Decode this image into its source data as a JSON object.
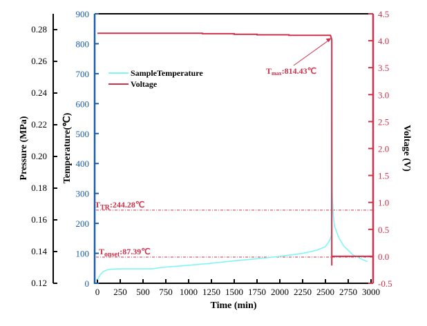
{
  "colors": {
    "temperature_axis": "#1a5ca8",
    "voltage": "#d0304a",
    "temperature": "#7ff5f5",
    "pressure_axis": "#000000"
  },
  "chart_data": {
    "type": "line",
    "xlabel": "Time (min)",
    "xlim": [
      0,
      3000
    ],
    "xticks": [
      "0",
      "250",
      "500",
      "750",
      "1000",
      "1250",
      "1500",
      "1750",
      "2000",
      "2250",
      "2500",
      "2750",
      "3000"
    ],
    "axes": {
      "pressure": {
        "label": "Pressure (MPa)",
        "ylim": [
          0.12,
          0.29
        ],
        "ticks": [
          "0.12",
          "0.14",
          "0.16",
          "0.18",
          "0.20",
          "0.22",
          "0.24",
          "0.26",
          "0.28"
        ]
      },
      "temperature": {
        "label": "Temperature(℃)",
        "ylim": [
          0,
          900
        ],
        "ticks": [
          "0",
          "100",
          "200",
          "300",
          "400",
          "500",
          "600",
          "700",
          "800",
          "900"
        ]
      },
      "voltage": {
        "label": "Voltage (V)",
        "ylim": [
          -0.5,
          4.5
        ],
        "ticks": [
          "-0.5",
          "0.0",
          "0.5",
          "1.0",
          "1.5",
          "2.0",
          "2.5",
          "3.0",
          "3.5",
          "4.0",
          "4.5"
        ]
      }
    },
    "legend": {
      "placement": "top-left",
      "entries": [
        "SampleTemperature",
        "Voltage"
      ]
    },
    "series": [
      {
        "name": "SampleTemperature",
        "axis": "temperature",
        "x": [
          0,
          30,
          60,
          100,
          150,
          250,
          600,
          700,
          1000,
          1250,
          1500,
          1750,
          2000,
          2250,
          2400,
          2500,
          2550,
          2565,
          2570,
          2575,
          2585,
          2600,
          2650,
          2700,
          2800,
          2900,
          2960
        ],
        "y": [
          12,
          28,
          38,
          44,
          47,
          48,
          48,
          53,
          60,
          67,
          75,
          82,
          90,
          100,
          110,
          122,
          145,
          160,
          814,
          300,
          230,
          190,
          150,
          125,
          95,
          80,
          72
        ]
      },
      {
        "name": "Voltage",
        "axis": "voltage",
        "x": [
          0,
          1150,
          1150,
          1500,
          1500,
          1750,
          1750,
          2100,
          2100,
          2555,
          2570,
          2570,
          2570,
          3000
        ],
        "y": [
          4.14,
          4.14,
          4.13,
          4.13,
          4.12,
          4.12,
          4.11,
          4.11,
          4.1,
          4.1,
          4.02,
          -0.17,
          0.0,
          0.0
        ]
      }
    ],
    "reference_lines": [
      {
        "axis": "temperature",
        "value": 244.28,
        "label_main": "T",
        "label_sub": "TR",
        "label_value": ":244.28℃"
      },
      {
        "axis": "temperature",
        "value": 87.39,
        "label_main": "T",
        "label_sub": "onset",
        "label_value": ":87.39℃"
      }
    ],
    "annotations": [
      {
        "label_main": "T",
        "label_sub": "max",
        "label_value": ":814.43℃",
        "points_to_x": 2565,
        "points_to_voltage": 4.05
      }
    ]
  }
}
